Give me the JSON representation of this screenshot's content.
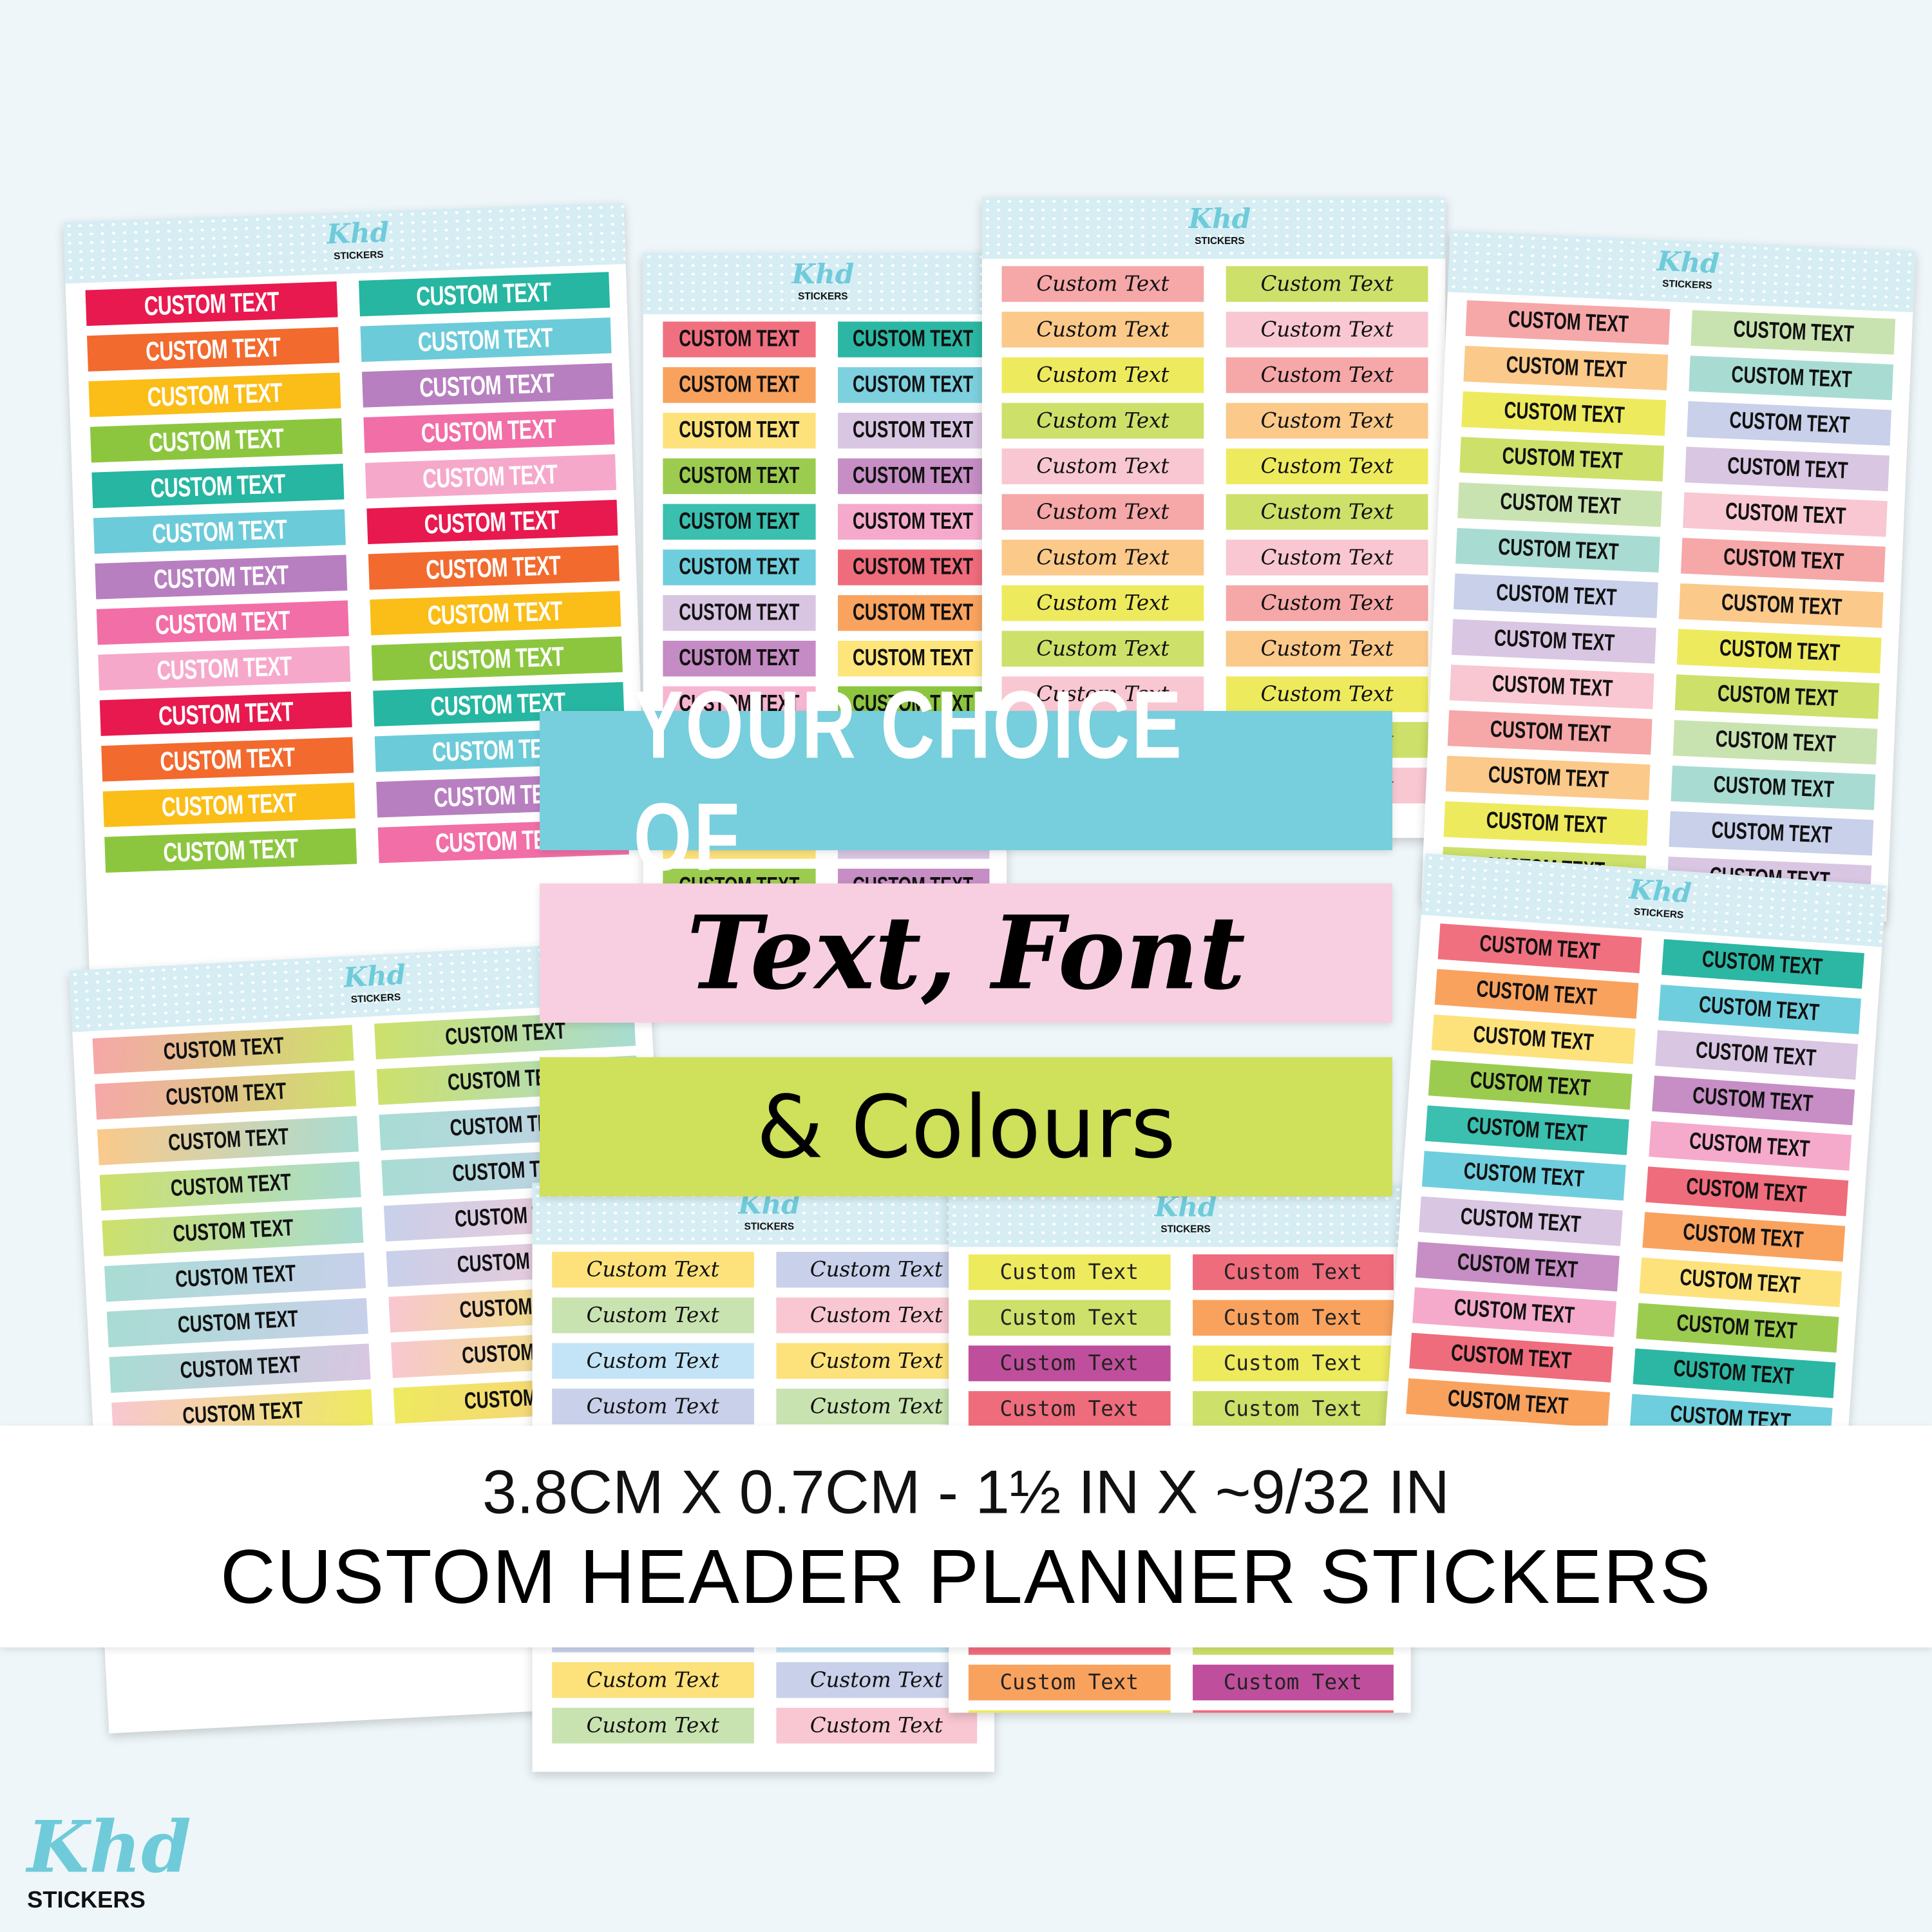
{
  "sheet_logo": {
    "mark": "Khd",
    "word": "STICKERS"
  },
  "banners": {
    "line1": "YOUR CHOICE OF",
    "line2": "Text, Font",
    "line3": "& Colours"
  },
  "band": {
    "size": "3.8CM X 0.7CM - 1½ IN X  ~9/32 IN",
    "title": "CUSTOM HEADER PLANNER STICKERS"
  },
  "brand": {
    "mark": "Khd",
    "word": "STICKERS"
  },
  "colors": {
    "background": "#eef6f9",
    "banner_blue": "#77cedd",
    "banner_pink": "#f7cfe0",
    "banner_lime": "#cfe05a"
  },
  "sheets": [
    {
      "style": "bold-w cond",
      "label": "CUSTOM TEXT",
      "columns": [
        [
          "#e8194f",
          "#f26a2e",
          "#fbbd17",
          "#8cc63f",
          "#26b6a1",
          "#6ccbd9",
          "#b77fc0",
          "#f26ea6",
          "#f6a8cb",
          "#e8194f",
          "#f26a2e",
          "#fbbd17",
          "#8cc63f"
        ],
        [
          "#26b6a1",
          "#6ccbd9",
          "#b77fc0",
          "#f26ea6",
          "#f6a8cb",
          "#e8194f",
          "#f26a2e",
          "#fbbd17",
          "#8cc63f",
          "#26b6a1",
          "#6ccbd9",
          "#b77fc0",
          "#f26ea6"
        ]
      ]
    },
    {
      "style": "bold-k cond",
      "label": "CUSTOM TEXT",
      "columns": [
        [
          "#f07080",
          "#f9a25e",
          "#fde27b",
          "#9ccc4f",
          "#3bbfae",
          "#6fcedd",
          "#d8c5e2",
          "#c58bc4",
          "#f6b5d0",
          "#f07080",
          "#f9a25e",
          "#fde27b",
          "#9ccc4f"
        ],
        [
          "#2bb7a3",
          "#7dd0de",
          "#d9c6e2",
          "#c68ec4",
          "#f5aacb",
          "#ef6c7c",
          "#f9a35f",
          "#fde57c",
          "#8cc63f",
          "#2bb7a3",
          "#7dd0de",
          "#d9c6e2",
          "#c68ec4"
        ]
      ]
    },
    {
      "style": "script",
      "label": "Custom Text",
      "columns": [
        [
          "#f6a7a8",
          "#fbc98a",
          "#eeea5e",
          "#cde06a",
          "#f8c7d2",
          "#f6a7a8",
          "#fbc98a",
          "#eeea5e",
          "#cde06a",
          "#f8c7d2",
          "#f6a7a8",
          "#fbc98a"
        ],
        [
          "#cde06a",
          "#f8c7d2",
          "#f6a7a8",
          "#fbc98a",
          "#eeea5e",
          "#cde06a",
          "#f8c7d2",
          "#f6a7a8",
          "#fbc98a",
          "#eeea5e",
          "#cde06a",
          "#f8c7d2"
        ]
      ]
    },
    {
      "style": "bold-k cond",
      "label": "CUSTOM TEXT",
      "columns": [
        [
          "#f6a7a8",
          "#fbc98a",
          "#eeea5e",
          "#cde06a",
          "#c9e3b0",
          "#a8dcd3",
          "#c8d0ea",
          "#d9c6e2",
          "#f8c7d2",
          "#f6a7a8",
          "#fbc98a",
          "#eeea5e",
          "#cde06a"
        ],
        [
          "#c9e3b0",
          "#a8dcd3",
          "#c8d0ea",
          "#d9c6e2",
          "#f8c7d2",
          "#f6a7a8",
          "#fbc98a",
          "#eeea5e",
          "#cde06a",
          "#c9e3b0",
          "#a8dcd3",
          "#c8d0ea",
          "#d9c6e2"
        ]
      ]
    },
    {
      "style": "bold-k cond",
      "label": "CUSTOM TEXT",
      "columns": [
        [
          "#f6a7a8|#cde06a",
          "#f6a7a8|#cde06a",
          "#fbc98a|#a8dcd3",
          "#cde06a|#a8dcd3",
          "#cde06a|#a8dcd3",
          "#a8dcd3|#c8d0ea",
          "#a8dcd3|#c8d0ea",
          "#a8dcd3|#d9c6e2",
          "#f8c7d2|#eeea5e",
          "#f8c7d2|#eeea5e",
          "#f8c7d2|#eeea5e",
          "#f8c7d2|#eeea5e",
          "#f8c7d2|#eeea5e"
        ],
        [
          "#cde06a|#a8dcd3",
          "#cde06a|#a8dcd3",
          "#a8dcd3|#c8d0ea",
          "#a8dcd3|#c8d0ea",
          "#c8d0ea|#f8c7d2",
          "#c8d0ea|#f8c7d2",
          "#f8c7d2|#eeea5e",
          "#f8c7d2|#eeea5e",
          "#eeea5e|#fbc98a",
          "#eeea5e|#fbc98a",
          "#eeea5e|#fbc98a",
          "#eeea5e|#fbc98a",
          "#eeea5e|#fbc98a"
        ]
      ]
    },
    {
      "style": "script",
      "label": "Custom Text",
      "columns": [
        [
          "#fde27b",
          "#c9e3b0",
          "#c2e4f6",
          "#c8d0ea",
          "#f8c7d2",
          "#fde27b",
          "#c9e3b0",
          "#c2e4f6",
          "#c8d0ea",
          "#fde27b",
          "#c9e3b0"
        ],
        [
          "#c8d0ea",
          "#f8c7d2",
          "#fde27b",
          "#c9e3b0",
          "#c2e4f6",
          "#c8d0ea",
          "#f8c7d2",
          "#fde27b",
          "#c2e4f6",
          "#c8d0ea",
          "#f8c7d2"
        ]
      ]
    },
    {
      "style": "hand",
      "label": "Custom Text",
      "columns": [
        [
          "#eeea5e",
          "#cde06a",
          "#bf4f9c",
          "#ef6c7c",
          "#f9a25e",
          "#eeea5e",
          "#cde06a",
          "#bf4f9c",
          "#ef6c7c",
          "#f9a25e",
          "#eeea5e"
        ],
        [
          "#ef6c7c",
          "#f9a25e",
          "#eeea5e",
          "#cde06a",
          "#bf4f9c",
          "#ef6c7c",
          "#f9a25e",
          "#eeea5e",
          "#cde06a",
          "#bf4f9c",
          "#ef6c7c"
        ]
      ]
    },
    {
      "style": "bold-k cond",
      "label": "CUSTOM TEXT",
      "columns": [
        [
          "#f07080",
          "#f9a25e",
          "#fde27b",
          "#9ccc4f",
          "#3bbfae",
          "#6fcedd",
          "#d9c6e2",
          "#c68ec4",
          "#f5aacb",
          "#ef6c7c",
          "#f9a25e"
        ],
        [
          "#2bb7a3",
          "#6fcedd",
          "#d9c6e2",
          "#c68ec4",
          "#f5aacb",
          "#ef6c7c",
          "#f9a25e",
          "#fde27b",
          "#9ccc4f",
          "#2bb7a3",
          "#6fcedd"
        ]
      ]
    }
  ]
}
